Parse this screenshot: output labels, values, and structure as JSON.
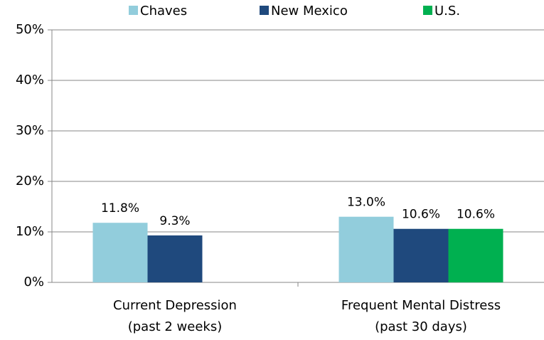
{
  "chart_data": {
    "type": "bar",
    "categories": [
      "Current Depression\n(past 2 weeks)",
      "Frequent Mental Distress\n(past 30 days)"
    ],
    "series": [
      {
        "name": "Chaves",
        "color": "#92cddc",
        "values": [
          11.8,
          13.0
        ],
        "value_labels": [
          "11.8%",
          "13.0%"
        ]
      },
      {
        "name": "New Mexico",
        "color": "#1f497d",
        "values": [
          9.3,
          10.6
        ],
        "value_labels": [
          "9.3%",
          "10.6%"
        ]
      },
      {
        "name": "U.S.",
        "color": "#00b050",
        "values": [
          null,
          10.6
        ],
        "value_labels": [
          null,
          "10.6%"
        ]
      }
    ],
    "ylim": [
      0,
      50
    ],
    "yticks": [
      {
        "value": 0,
        "label": "0%"
      },
      {
        "value": 10,
        "label": "10%"
      },
      {
        "value": 20,
        "label": "20%"
      },
      {
        "value": 30,
        "label": "30%"
      },
      {
        "value": 40,
        "label": "40%"
      },
      {
        "value": 50,
        "label": "50%"
      }
    ],
    "grid": true,
    "legend": "top"
  }
}
